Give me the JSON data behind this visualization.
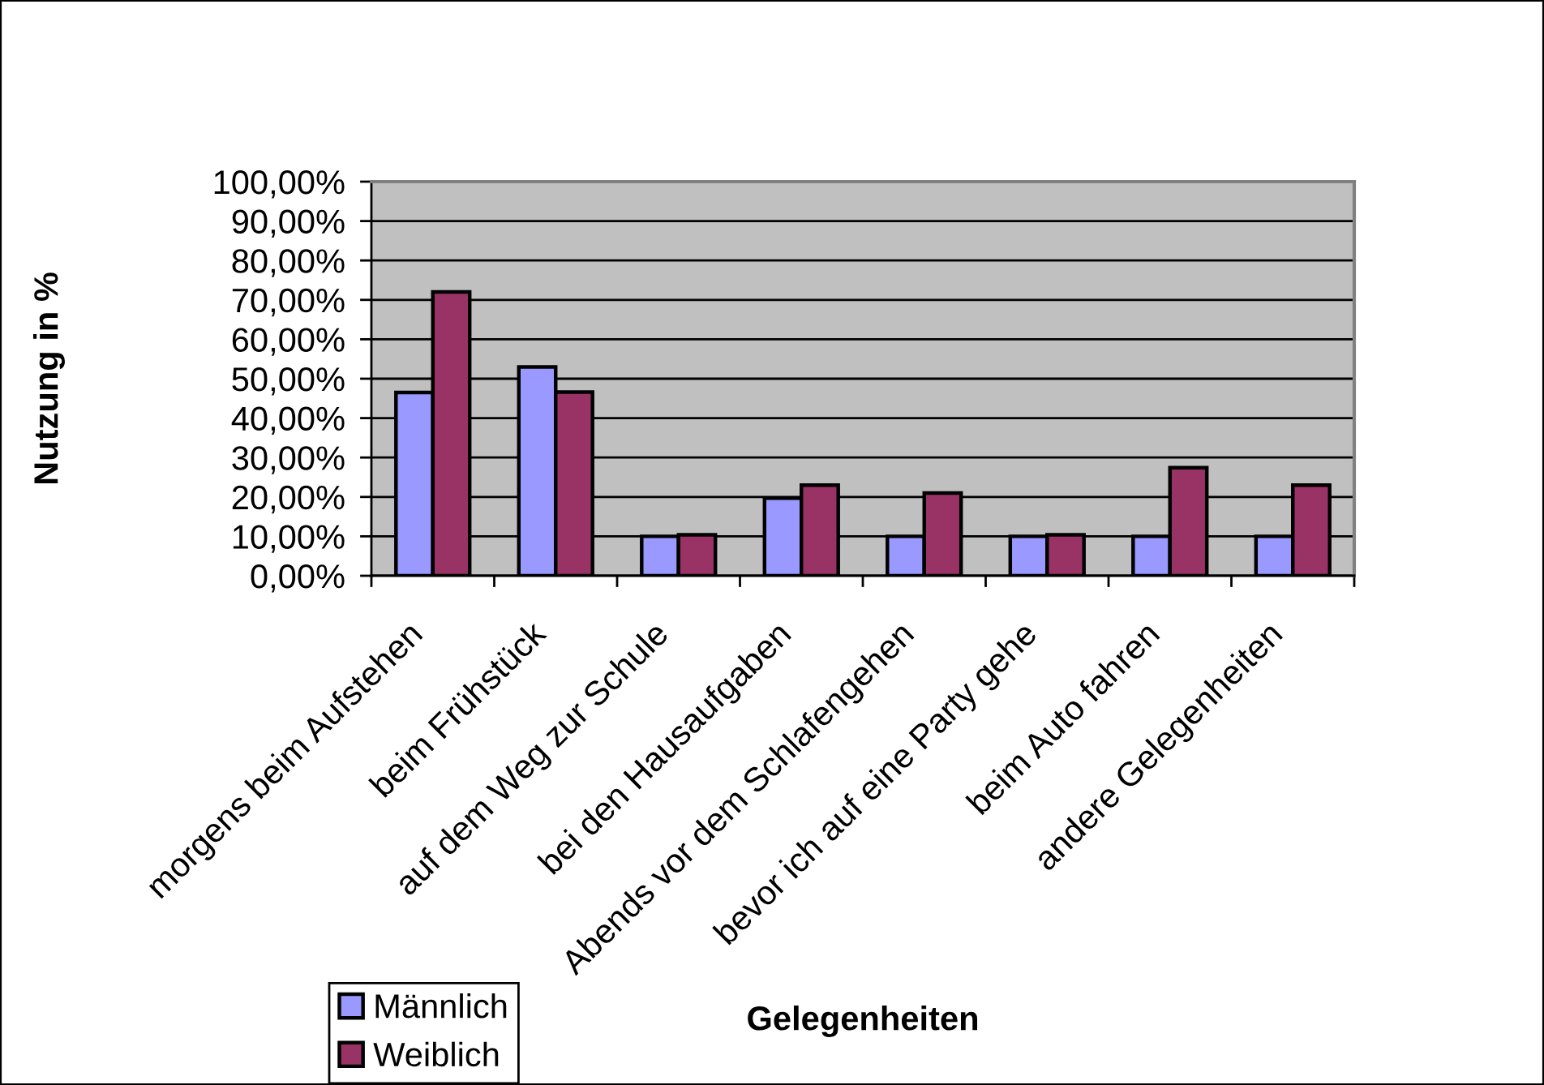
{
  "chart_data": {
    "type": "bar",
    "xlabel": "Gelegenheiten",
    "ylabel": "Nutzung in %",
    "categories": [
      "morgens beim Aufstehen",
      "beim Frühstück",
      "auf dem Weg zur Schule",
      "bei den Hausaufgaben",
      "Abends vor dem Schlafengehen",
      "bevor ich auf eine Party gehe",
      "beim Auto fahren",
      "andere Gelegenheiten"
    ],
    "series": [
      {
        "name": "Männlich",
        "color": "#9999ff",
        "values": [
          46.5,
          53.0,
          10.0,
          19.7,
          10.0,
          10.0,
          10.0,
          10.0
        ]
      },
      {
        "name": "Weiblich",
        "color": "#993366",
        "values": [
          72.0,
          46.6,
          10.4,
          23.0,
          21.0,
          10.4,
          27.4,
          23.0
        ]
      }
    ],
    "ylim": [
      0,
      100
    ],
    "yticks": [
      {
        "value": 0,
        "label": "0,00%"
      },
      {
        "value": 10,
        "label": "10,00%"
      },
      {
        "value": 20,
        "label": "20,00%"
      },
      {
        "value": 30,
        "label": "30,00%"
      },
      {
        "value": 40,
        "label": "40,00%"
      },
      {
        "value": 50,
        "label": "50,00%"
      },
      {
        "value": 60,
        "label": "60,00%"
      },
      {
        "value": 70,
        "label": "70,00%"
      },
      {
        "value": 80,
        "label": "80,00%"
      },
      {
        "value": 90,
        "label": "90,00%"
      },
      {
        "value": 100,
        "label": "100,00%"
      }
    ],
    "grid": "y",
    "legend": "bottom left"
  }
}
